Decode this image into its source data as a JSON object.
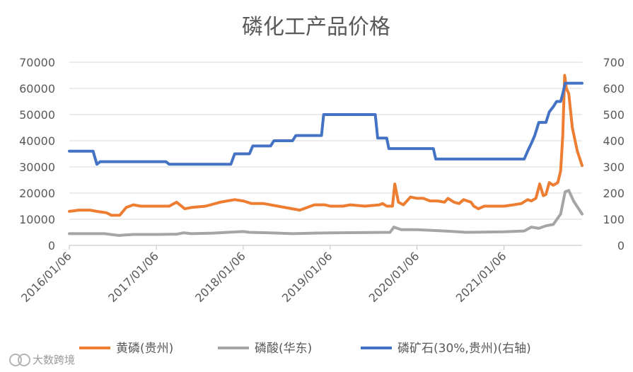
{
  "chart_data": {
    "type": "line",
    "title": "磷化工产品价格",
    "y_left": {
      "ticks": [
        0,
        10000,
        20000,
        30000,
        40000,
        50000,
        60000,
        70000
      ],
      "ylim": [
        0,
        70000
      ]
    },
    "y_right": {
      "ticks": [
        0,
        100,
        200,
        300,
        400,
        500,
        600,
        700
      ],
      "ylim": [
        0,
        700
      ]
    },
    "x_ticks": [
      "2016/01/06",
      "2017/01/06",
      "2018/01/06",
      "2019/01/06",
      "2020/01/06",
      "2021/01/06"
    ],
    "xlim": [
      "2016/01/06",
      "2021/11/30"
    ],
    "grid": "horizontal",
    "legend_position": "bottom",
    "series": [
      {
        "name": "黄磷(贵州)",
        "axis": "left",
        "color": "#ED7D31",
        "points": [
          [
            "2016-01-06",
            13000
          ],
          [
            "2016-02-15",
            13500
          ],
          [
            "2016-04-01",
            13500
          ],
          [
            "2016-05-01",
            13000
          ],
          [
            "2016-06-10",
            12500
          ],
          [
            "2016-07-01",
            11500
          ],
          [
            "2016-08-05",
            11500
          ],
          [
            "2016-09-01",
            14500
          ],
          [
            "2016-10-01",
            15500
          ],
          [
            "2016-11-01",
            15000
          ],
          [
            "2017-01-06",
            15000
          ],
          [
            "2017-03-01",
            15000
          ],
          [
            "2017-04-01",
            16500
          ],
          [
            "2017-05-05",
            14000
          ],
          [
            "2017-06-01",
            14500
          ],
          [
            "2017-08-01",
            15000
          ],
          [
            "2017-10-01",
            16500
          ],
          [
            "2017-12-01",
            17500
          ],
          [
            "2018-01-06",
            17000
          ],
          [
            "2018-02-10",
            16000
          ],
          [
            "2018-04-01",
            16000
          ],
          [
            "2018-05-01",
            15500
          ],
          [
            "2018-07-01",
            14500
          ],
          [
            "2018-09-01",
            13500
          ],
          [
            "2018-11-01",
            15500
          ],
          [
            "2018-12-15",
            15500
          ],
          [
            "2019-01-06",
            15000
          ],
          [
            "2019-03-01",
            15000
          ],
          [
            "2019-04-01",
            15500
          ],
          [
            "2019-06-01",
            15000
          ],
          [
            "2019-08-01",
            15500
          ],
          [
            "2019-08-15",
            16000
          ],
          [
            "2019-09-01",
            15000
          ],
          [
            "2019-09-25",
            15000
          ],
          [
            "2019-10-05",
            23500
          ],
          [
            "2019-10-20",
            16500
          ],
          [
            "2019-11-10",
            15500
          ],
          [
            "2019-12-10",
            18500
          ],
          [
            "2020-01-06",
            18000
          ],
          [
            "2020-02-01",
            18000
          ],
          [
            "2020-03-01",
            17000
          ],
          [
            "2020-04-01",
            17000
          ],
          [
            "2020-05-01",
            16500
          ],
          [
            "2020-05-15",
            18000
          ],
          [
            "2020-06-10",
            16500
          ],
          [
            "2020-07-01",
            16000
          ],
          [
            "2020-07-20",
            17500
          ],
          [
            "2020-08-20",
            16500
          ],
          [
            "2020-09-01",
            15000
          ],
          [
            "2020-09-20",
            14000
          ],
          [
            "2020-10-15",
            15000
          ],
          [
            "2020-11-15",
            15000
          ],
          [
            "2020-12-15",
            15000
          ],
          [
            "2021-01-06",
            15000
          ],
          [
            "2021-02-15",
            15500
          ],
          [
            "2021-03-20",
            16000
          ],
          [
            "2021-04-15",
            17500
          ],
          [
            "2021-05-01",
            17000
          ],
          [
            "2021-05-20",
            18000
          ],
          [
            "2021-06-05",
            23500
          ],
          [
            "2021-06-20",
            19000
          ],
          [
            "2021-07-01",
            19500
          ],
          [
            "2021-07-15",
            24000
          ],
          [
            "2021-08-01",
            23000
          ],
          [
            "2021-08-20",
            24000
          ],
          [
            "2021-09-01",
            28500
          ],
          [
            "2021-09-10",
            42000
          ],
          [
            "2021-09-18",
            65000
          ],
          [
            "2021-09-25",
            60000
          ],
          [
            "2021-10-05",
            58000
          ],
          [
            "2021-10-20",
            45000
          ],
          [
            "2021-11-10",
            36000
          ],
          [
            "2021-11-30",
            30500
          ]
        ]
      },
      {
        "name": "磷酸(华东)",
        "axis": "left",
        "color": "#A5A5A5",
        "points": [
          [
            "2016-01-06",
            4500
          ],
          [
            "2016-06-01",
            4500
          ],
          [
            "2016-08-01",
            3800
          ],
          [
            "2016-10-01",
            4200
          ],
          [
            "2017-01-06",
            4200
          ],
          [
            "2017-04-01",
            4300
          ],
          [
            "2017-05-01",
            4800
          ],
          [
            "2017-06-01",
            4500
          ],
          [
            "2017-09-01",
            4700
          ],
          [
            "2017-11-01",
            5000
          ],
          [
            "2018-01-06",
            5300
          ],
          [
            "2018-02-01",
            5000
          ],
          [
            "2018-06-01",
            4700
          ],
          [
            "2018-08-01",
            4500
          ],
          [
            "2018-11-01",
            4700
          ],
          [
            "2019-01-06",
            4800
          ],
          [
            "2019-09-15",
            5000
          ],
          [
            "2019-10-01",
            7000
          ],
          [
            "2019-11-01",
            6000
          ],
          [
            "2020-01-06",
            6000
          ],
          [
            "2020-05-01",
            5500
          ],
          [
            "2020-08-01",
            5000
          ],
          [
            "2021-01-06",
            5200
          ],
          [
            "2021-04-01",
            5500
          ],
          [
            "2021-05-01",
            7000
          ],
          [
            "2021-06-01",
            6500
          ],
          [
            "2021-07-01",
            7500
          ],
          [
            "2021-08-01",
            8000
          ],
          [
            "2021-09-01",
            12000
          ],
          [
            "2021-09-20",
            20500
          ],
          [
            "2021-10-05",
            21000
          ],
          [
            "2021-10-25",
            17000
          ],
          [
            "2021-11-30",
            12000
          ]
        ]
      },
      {
        "name": "磷矿石(30%,贵州)(右轴)",
        "axis": "right",
        "color": "#4472C4",
        "points": [
          [
            "2016-01-06",
            360
          ],
          [
            "2016-04-15",
            360
          ],
          [
            "2016-05-01",
            310
          ],
          [
            "2016-05-15",
            320
          ],
          [
            "2017-02-15",
            320
          ],
          [
            "2017-03-01",
            310
          ],
          [
            "2017-11-15",
            310
          ],
          [
            "2017-12-01",
            350
          ],
          [
            "2018-02-01",
            350
          ],
          [
            "2018-02-15",
            380
          ],
          [
            "2018-05-01",
            380
          ],
          [
            "2018-05-15",
            400
          ],
          [
            "2018-08-01",
            400
          ],
          [
            "2018-08-15",
            420
          ],
          [
            "2018-12-01",
            420
          ],
          [
            "2018-12-10",
            500
          ],
          [
            "2019-07-15",
            500
          ],
          [
            "2019-07-25",
            410
          ],
          [
            "2019-09-01",
            410
          ],
          [
            "2019-09-10",
            370
          ],
          [
            "2020-01-06",
            370
          ],
          [
            "2020-03-15",
            370
          ],
          [
            "2020-03-25",
            330
          ],
          [
            "2020-09-01",
            330
          ],
          [
            "2021-04-01",
            330
          ],
          [
            "2021-04-15",
            360
          ],
          [
            "2021-05-01",
            390
          ],
          [
            "2021-05-15",
            420
          ],
          [
            "2021-06-01",
            470
          ],
          [
            "2021-07-01",
            470
          ],
          [
            "2021-07-15",
            510
          ],
          [
            "2021-08-01",
            530
          ],
          [
            "2021-08-15",
            550
          ],
          [
            "2021-09-01",
            550
          ],
          [
            "2021-09-10",
            580
          ],
          [
            "2021-09-20",
            620
          ],
          [
            "2021-11-30",
            620
          ]
        ]
      }
    ]
  },
  "watermark": "大数跨境"
}
